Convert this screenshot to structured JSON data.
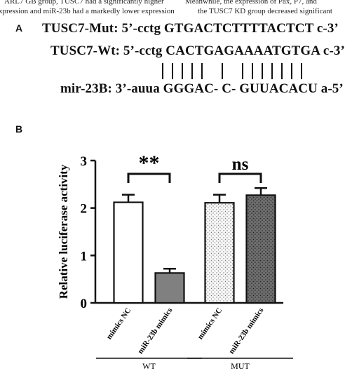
{
  "page_header": {
    "left_line1": "ARL7 GB group, TUSC7 had a significantly higher",
    "left_line2": "xpression and miR-23b had a markedly lower expression",
    "right_line1": "Meanwhile, the expression of Pax, P7, and",
    "right_line2": "the TUSC7 KD group decreased significant"
  },
  "panel_a": {
    "label": "A",
    "mut_line": "TUSC7-Mut: 5’-cctg GTGACTCTTTTACTCT c-3’",
    "wt_line": "TUSC7-Wt: 5’-cctg CACTGAGAAAATGTGA c-3’",
    "mir_line": "mir-23B: 3’-auua GGGAC- C- GUUACACU a-5’"
  },
  "chart_data": {
    "type": "bar",
    "panel_label": "B",
    "ylabel": "Relative luciferase activity",
    "ylim": [
      0,
      3
    ],
    "yticks": [
      0,
      1,
      2,
      3
    ],
    "categories": [
      "mimics NC",
      "miR-23b mimics",
      "mimics NC",
      "miR-23b mimics"
    ],
    "groups": [
      {
        "label": "WT",
        "members": [
          0,
          1
        ]
      },
      {
        "label": "MUT",
        "members": [
          2,
          3
        ]
      }
    ],
    "values": [
      2.12,
      0.63,
      2.11,
      2.27
    ],
    "errors": [
      0.16,
      0.09,
      0.17,
      0.15
    ],
    "fills": [
      "white",
      "#808080",
      "dots-light",
      "dots-dark"
    ],
    "significance": [
      {
        "bars": [
          0,
          1
        ],
        "label": "**",
        "y": 2.72
      },
      {
        "bars": [
          2,
          3
        ],
        "label": "ns",
        "y": 2.72
      }
    ],
    "grid": false,
    "legend": "none"
  }
}
